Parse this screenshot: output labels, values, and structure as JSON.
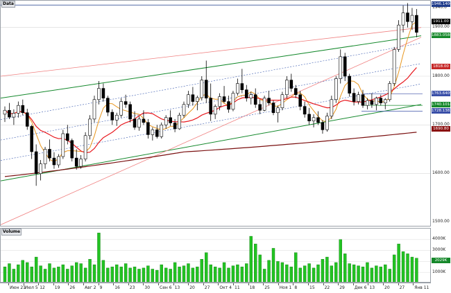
{
  "panes": {
    "price_title": "Data",
    "volume_title": "Volume"
  },
  "colors": {
    "bull": "#ffffff",
    "bear": "#000000",
    "ma_fast": "#e8961e",
    "ma_mid": "#e8181e",
    "ma_slow": "#7a0f0f",
    "channel": "#13882b",
    "outer_channel": "#f08080",
    "fib": "#3b5bb0",
    "volume_bar": "#22c322"
  },
  "price_axis": {
    "labels": [
      "1940.0",
      "1900.00",
      "1800.00",
      "1700.00",
      "1600.00",
      "1500.00"
    ],
    "markers": [
      {
        "text": "1946.1400",
        "bg": "#1f3b8a"
      },
      {
        "text": "1911.00",
        "bg": "#000000"
      },
      {
        "text": "1883.0584",
        "bg": "#15882a"
      },
      {
        "text": "1818.00",
        "bg": "#c62828"
      },
      {
        "text": "1763.6409",
        "bg": "#3a4fa8"
      },
      {
        "text": "1740.1014",
        "bg": "#15882a"
      },
      {
        "text": "1728.1382",
        "bg": "#3a4fa8"
      },
      {
        "text": "1690.80",
        "bg": "#8a1010"
      }
    ]
  },
  "volume_axis": {
    "labels": [
      "4000K",
      "3000K",
      "2000K",
      "1000K"
    ],
    "marker": {
      "text": "2029K",
      "bg": "#15882a"
    }
  },
  "date_axis": {
    "labels": [
      "Июн 21",
      "Июл 5",
      "12",
      "19",
      "26",
      "Авг 2",
      "9",
      "16",
      "23",
      "30",
      "Сен 6",
      "13",
      "20",
      "27",
      "Окт 4",
      "11",
      "18",
      "25",
      "Ноя 1",
      "8",
      "15",
      "22",
      "29",
      "Дек 6",
      "13",
      "20",
      "27",
      "Янв 11"
    ]
  },
  "chart_data": {
    "type": "candlestick",
    "ylim": [
      1490,
      1955
    ],
    "volume_ylim": [
      0,
      5000
    ],
    "candles": [
      [
        1722,
        1738,
        1706,
        1730
      ],
      [
        1730,
        1745,
        1712,
        1716
      ],
      [
        1716,
        1732,
        1700,
        1724
      ],
      [
        1724,
        1748,
        1715,
        1740
      ],
      [
        1740,
        1752,
        1720,
        1725
      ],
      [
        1725,
        1733,
        1690,
        1697
      ],
      [
        1697,
        1700,
        1630,
        1645
      ],
      [
        1645,
        1660,
        1575,
        1600
      ],
      [
        1600,
        1628,
        1586,
        1620
      ],
      [
        1620,
        1655,
        1610,
        1650
      ],
      [
        1650,
        1670,
        1625,
        1632
      ],
      [
        1632,
        1644,
        1610,
        1618
      ],
      [
        1618,
        1640,
        1612,
        1635
      ],
      [
        1635,
        1690,
        1630,
        1682
      ],
      [
        1682,
        1700,
        1660,
        1668
      ],
      [
        1668,
        1672,
        1625,
        1632
      ],
      [
        1632,
        1650,
        1608,
        1615
      ],
      [
        1615,
        1638,
        1610,
        1630
      ],
      [
        1630,
        1685,
        1625,
        1678
      ],
      [
        1678,
        1720,
        1670,
        1712
      ],
      [
        1712,
        1760,
        1705,
        1752
      ],
      [
        1752,
        1790,
        1742,
        1775
      ],
      [
        1775,
        1785,
        1748,
        1755
      ],
      [
        1755,
        1760,
        1718,
        1726
      ],
      [
        1726,
        1732,
        1700,
        1710
      ],
      [
        1710,
        1725,
        1698,
        1720
      ],
      [
        1720,
        1755,
        1715,
        1748
      ],
      [
        1748,
        1762,
        1735,
        1742
      ],
      [
        1742,
        1748,
        1705,
        1712
      ],
      [
        1712,
        1728,
        1690,
        1695
      ],
      [
        1695,
        1718,
        1688,
        1712
      ],
      [
        1712,
        1730,
        1700,
        1705
      ],
      [
        1705,
        1712,
        1672,
        1680
      ],
      [
        1680,
        1695,
        1668,
        1690
      ],
      [
        1690,
        1700,
        1672,
        1676
      ],
      [
        1676,
        1705,
        1672,
        1700
      ],
      [
        1700,
        1720,
        1692,
        1715
      ],
      [
        1715,
        1730,
        1698,
        1704
      ],
      [
        1704,
        1712,
        1685,
        1692
      ],
      [
        1692,
        1725,
        1690,
        1720
      ],
      [
        1720,
        1748,
        1715,
        1742
      ],
      [
        1742,
        1770,
        1735,
        1762
      ],
      [
        1762,
        1778,
        1740,
        1748
      ],
      [
        1748,
        1760,
        1730,
        1756
      ],
      [
        1756,
        1800,
        1750,
        1792
      ],
      [
        1792,
        1832,
        1745,
        1755
      ],
      [
        1755,
        1785,
        1708,
        1722
      ],
      [
        1722,
        1742,
        1712,
        1738
      ],
      [
        1738,
        1765,
        1730,
        1758
      ],
      [
        1758,
        1780,
        1745,
        1748
      ],
      [
        1748,
        1760,
        1725,
        1732
      ],
      [
        1732,
        1770,
        1728,
        1765
      ],
      [
        1765,
        1795,
        1760,
        1785
      ],
      [
        1785,
        1815,
        1765,
        1772
      ],
      [
        1772,
        1782,
        1748,
        1755
      ],
      [
        1755,
        1768,
        1742,
        1762
      ],
      [
        1762,
        1775,
        1735,
        1742
      ],
      [
        1742,
        1752,
        1722,
        1730
      ],
      [
        1730,
        1760,
        1728,
        1755
      ],
      [
        1755,
        1770,
        1740,
        1745
      ],
      [
        1745,
        1750,
        1720,
        1725
      ],
      [
        1725,
        1740,
        1705,
        1735
      ],
      [
        1735,
        1768,
        1730,
        1762
      ],
      [
        1762,
        1800,
        1755,
        1792
      ],
      [
        1792,
        1805,
        1768,
        1775
      ],
      [
        1775,
        1782,
        1755,
        1762
      ],
      [
        1762,
        1770,
        1730,
        1738
      ],
      [
        1738,
        1748,
        1715,
        1722
      ],
      [
        1722,
        1735,
        1700,
        1708
      ],
      [
        1708,
        1722,
        1695,
        1715
      ],
      [
        1715,
        1728,
        1700,
        1705
      ],
      [
        1705,
        1710,
        1682,
        1690
      ],
      [
        1690,
        1725,
        1686,
        1718
      ],
      [
        1718,
        1760,
        1712,
        1752
      ],
      [
        1752,
        1800,
        1745,
        1795
      ],
      [
        1795,
        1855,
        1785,
        1840
      ],
      [
        1840,
        1848,
        1790,
        1800
      ],
      [
        1800,
        1805,
        1758,
        1765
      ],
      [
        1765,
        1775,
        1740,
        1748
      ],
      [
        1748,
        1768,
        1742,
        1762
      ],
      [
        1762,
        1772,
        1735,
        1740
      ],
      [
        1740,
        1755,
        1732,
        1750
      ],
      [
        1750,
        1765,
        1735,
        1742
      ],
      [
        1742,
        1758,
        1730,
        1755
      ],
      [
        1755,
        1762,
        1740,
        1745
      ],
      [
        1745,
        1755,
        1732,
        1752
      ],
      [
        1752,
        1790,
        1748,
        1785
      ],
      [
        1785,
        1860,
        1780,
        1855
      ],
      [
        1855,
        1915,
        1850,
        1905
      ],
      [
        1905,
        1945,
        1890,
        1930
      ],
      [
        1930,
        1950,
        1900,
        1912
      ],
      [
        1912,
        1940,
        1895,
        1925
      ],
      [
        1925,
        1938,
        1880,
        1890
      ]
    ],
    "volumes": [
      1500,
      1800,
      1300,
      1700,
      2100,
      1900,
      1500,
      2400,
      1600,
      1300,
      1800,
      1400,
      1500,
      1700,
      1300,
      1600,
      1900,
      1800,
      1400,
      2200,
      1700,
      4600,
      2100,
      1400,
      1500,
      1700,
      1500,
      1800,
      1400,
      1500,
      1300,
      1400,
      1600,
      1300,
      1200,
      1700,
      1400,
      1300,
      1900,
      1500,
      1600,
      1800,
      1400,
      1500,
      2200,
      2800,
      1700,
      1500,
      1400,
      1900,
      1400,
      1600,
      1700,
      1500,
      1800,
      4300,
      3600,
      2600,
      1300,
      2100,
      3200,
      2000,
      1900,
      1700,
      1500,
      2800,
      1400,
      1600,
      1800,
      1400,
      1700,
      2200,
      2400,
      1600,
      1900,
      4000,
      2700,
      1800,
      1700,
      1600,
      1500,
      1900,
      1400,
      1600,
      1500,
      1700,
      1300,
      2600,
      3600,
      2900,
      2700,
      2400,
      2300
    ],
    "indicators": [
      "fast moving average",
      "medium moving average",
      "slow moving average",
      "trend channel",
      "outer channel",
      "fibonacci levels"
    ]
  }
}
